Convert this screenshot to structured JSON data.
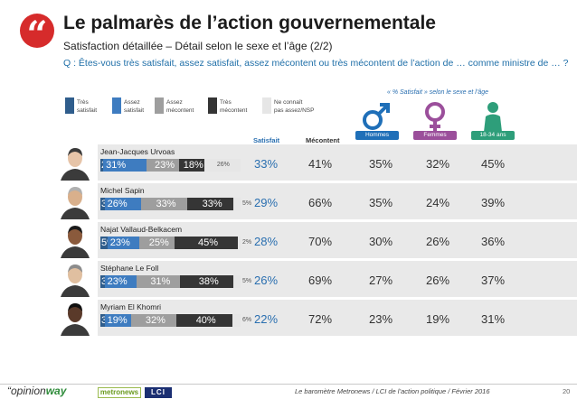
{
  "header": {
    "badge": "“",
    "title": "Le palmarès de l’action gouvernementale",
    "subtitle": "Satisfaction détaillée – Détail selon le sexe et l’âge (2/2)",
    "question": "Q : Êtes-vous très satisfait, assez satisfait, assez mécontent ou très mécontent de l’action de … comme ministre de … ?"
  },
  "legend": [
    {
      "l1": "Très",
      "l2": "satisfait",
      "color": "#2f5d8c"
    },
    {
      "l1": "Assez",
      "l2": "satisfait",
      "color": "#3e7cc0"
    },
    {
      "l1": "Assez",
      "l2": "mécontent",
      "color": "#9e9e9e"
    },
    {
      "l1": "Très",
      "l2": "mécontent",
      "color": "#353535"
    },
    {
      "l1": "Ne connaît",
      "l2": "pas assez/NSP",
      "color": "#e6e6e6"
    }
  ],
  "demographics": {
    "note": "« % Satisfait » selon le sexe et l’âge",
    "groups": [
      {
        "label": "Hommes",
        "color": "#1f6fb8",
        "icon": "male-symbol-icon"
      },
      {
        "label": "Femmes",
        "color": "#9b4f9b",
        "icon": "female-symbol-icon"
      },
      {
        "label": "18-34 ans",
        "color": "#2e9e7a",
        "icon": "young-person-icon"
      }
    ]
  },
  "columns": {
    "satisfait": "Satisfait",
    "mecontent": "Mécontent"
  },
  "colors": {
    "tres_satisfait": "#2f5d8c",
    "assez_satisfait": "#3e7cc0",
    "assez_mecontent": "#9e9e9e",
    "tres_mecontent": "#353535",
    "nsp": "#e6e6e6",
    "satisfait_text": "#2a6fb0",
    "mecontent_text": "#333333"
  },
  "chart_data": {
    "type": "bar",
    "orientation": "horizontal-stacked",
    "title": "Le palmarès de l’action gouvernementale",
    "categories": [
      "Jean-Jacques Urvoas",
      "Michel Sapin",
      "Najat Vallaud-Belkacem",
      "Stéphane Le Foll",
      "Myriam El Khomri"
    ],
    "series": [
      {
        "name": "Très satisfait",
        "values": [
          2,
          3,
          5,
          3,
          3
        ]
      },
      {
        "name": "Assez satisfait",
        "values": [
          31,
          26,
          23,
          23,
          19
        ]
      },
      {
        "name": "Assez mécontent",
        "values": [
          23,
          33,
          25,
          31,
          32
        ]
      },
      {
        "name": "Très mécontent",
        "values": [
          18,
          33,
          45,
          38,
          40
        ]
      },
      {
        "name": "Ne connaît pas assez/NSP",
        "values": [
          26,
          5,
          2,
          5,
          6
        ]
      }
    ],
    "summary": {
      "satisfait": [
        "33%",
        "29%",
        "28%",
        "26%",
        "22%"
      ],
      "mecontent": [
        "41%",
        "66%",
        "70%",
        "69%",
        "72%"
      ],
      "hommes": [
        "35%",
        "35%",
        "30%",
        "27%",
        "23%"
      ],
      "femmes": [
        "32%",
        "24%",
        "26%",
        "26%",
        "19%"
      ],
      "jeunes_18_34": [
        "45%",
        "39%",
        "36%",
        "37%",
        "31%"
      ]
    },
    "labels": [
      [
        "2%",
        "31%",
        "23%",
        "18%",
        "26%"
      ],
      [
        "3%",
        "26%",
        "33%",
        "33%",
        "5%"
      ],
      [
        "5%",
        "23%",
        "25%",
        "45%",
        "2%"
      ],
      [
        "3%",
        "23%",
        "31%",
        "38%",
        "5%"
      ],
      [
        "3%",
        "19%",
        "32%",
        "40%",
        "6%"
      ]
    ],
    "xlim": [
      0,
      100
    ]
  },
  "footer": {
    "logo_prefix": "“opinion",
    "logo_suffix": "way",
    "metronews": "metronews",
    "lci": "LCI",
    "source": "Le baromètre Metronews / LCI de l’action politique / Février 2016",
    "page": "20"
  }
}
